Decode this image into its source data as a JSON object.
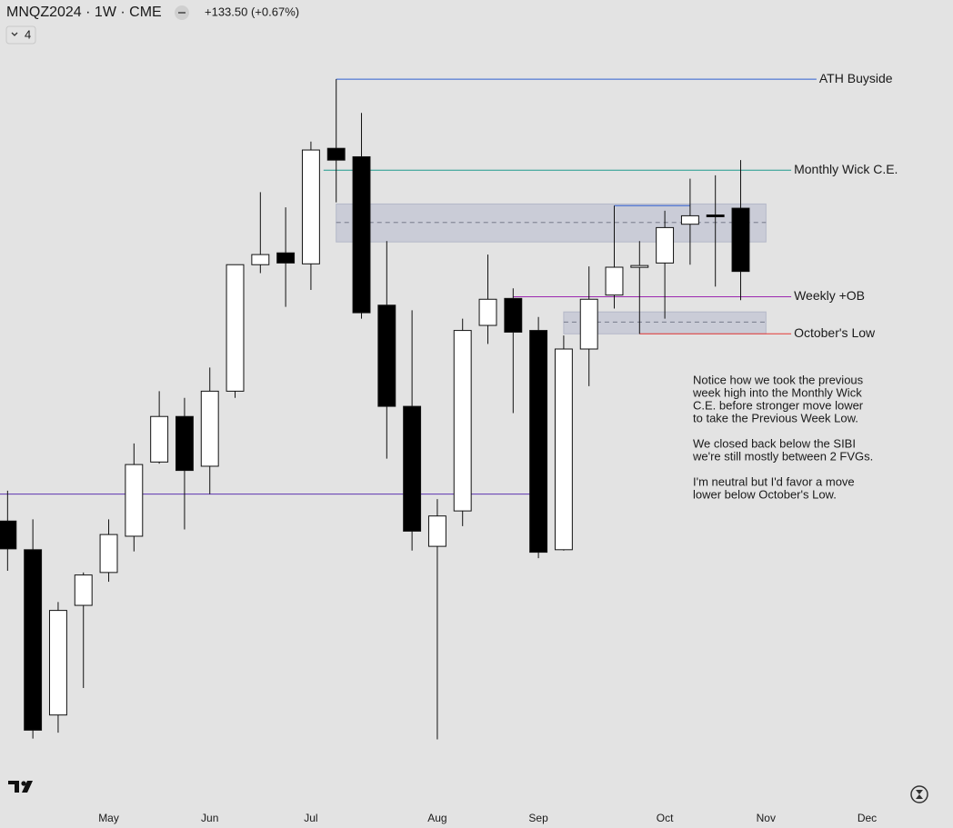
{
  "chart_data": {
    "type": "candlestick",
    "title": "MNQZ2024 · 1W · CME",
    "change": "+133.50 (+0.67%)",
    "indicator_count": 4,
    "ylim": [
      17000,
      21500
    ],
    "xlim": [
      -0.3,
      37.4
    ],
    "up_color": "#ffffff",
    "down_color": "#000000",
    "xticks": [
      {
        "value": 4,
        "label": "May"
      },
      {
        "value": 8,
        "label": "Jun"
      },
      {
        "value": 12,
        "label": "Jul"
      },
      {
        "value": 17,
        "label": "Aug"
      },
      {
        "value": 21,
        "label": "Sep"
      },
      {
        "value": 26,
        "label": "Oct"
      },
      {
        "value": 30,
        "label": "Nov"
      },
      {
        "value": 34,
        "label": "Dec"
      }
    ],
    "open": [
      18680,
      18510,
      17530,
      18180,
      18375,
      18590,
      19030,
      19300,
      19005,
      19450,
      20200,
      20270,
      20205,
      20890,
      20840,
      19960,
      19360,
      18530,
      18740,
      19840,
      20000,
      19810,
      18510,
      19700,
      20020,
      20185,
      20210,
      20440,
      20495,
      20535
    ],
    "high": [
      18860,
      18690,
      18200,
      18375,
      18690,
      19140,
      19450,
      19410,
      19590,
      20200,
      20630,
      20540,
      20930,
      21300,
      21100,
      20340,
      19930,
      18810,
      19880,
      20260,
      20060,
      19890,
      19780,
      20190,
      20550,
      20340,
      20520,
      20710,
      20730,
      20820
    ],
    "low": [
      18385,
      17390,
      17425,
      17690,
      18320,
      18500,
      19020,
      18630,
      18840,
      19410,
      20150,
      19950,
      20050,
      20570,
      19880,
      19050,
      18505,
      17385,
      18650,
      19730,
      19320,
      18460,
      18505,
      19480,
      19940,
      19790,
      19880,
      20200,
      20070,
      19990
    ],
    "close": [
      18515,
      17440,
      18150,
      18360,
      18600,
      19015,
      19300,
      18980,
      19450,
      20200,
      20260,
      20210,
      20880,
      20820,
      19915,
      19360,
      18620,
      18710,
      19810,
      19995,
      19800,
      18495,
      19700,
      19995,
      20185,
      20195,
      20420,
      20490,
      20485,
      20160
    ],
    "levels": [
      {
        "label": "ATH Buyside",
        "value": 21300,
        "start": 13,
        "end": 32,
        "color": "#2f5fd0"
      },
      {
        "label": "Monthly Wick C.E.",
        "value": 20760,
        "start": 12.5,
        "end": 31,
        "color": "#1f9a8c"
      },
      {
        "label": "Weekly +OB",
        "value": 20010,
        "start": 20,
        "end": 31,
        "color": "#9c27b0"
      },
      {
        "label": "October's Low",
        "value": 19790,
        "start": 25,
        "end": 31,
        "color": "#e53935"
      },
      {
        "value": 18840,
        "start": -0.3,
        "end": 21,
        "color": "#5e35b1"
      },
      {
        "value": 20550,
        "start": 24,
        "end": 27,
        "color": "#2f5fd0"
      }
    ],
    "zones": [
      {
        "top": 20560,
        "bottom": 20335,
        "mid": 20450,
        "start": 13,
        "end": 30
      },
      {
        "top": 19920,
        "bottom": 19790,
        "mid": 19860,
        "start": 22,
        "end": 30
      }
    ],
    "notes": [
      [
        "Notice how we took the previous",
        "week high into the Monthly Wick",
        "C.E. before stronger move lower",
        "to take the Previous Week Low."
      ],
      [
        "We closed back below the SIBI",
        "we're still mostly between 2 FVGs."
      ],
      [
        "I'm neutral but I'd favor a move",
        "lower below October's Low."
      ]
    ]
  }
}
